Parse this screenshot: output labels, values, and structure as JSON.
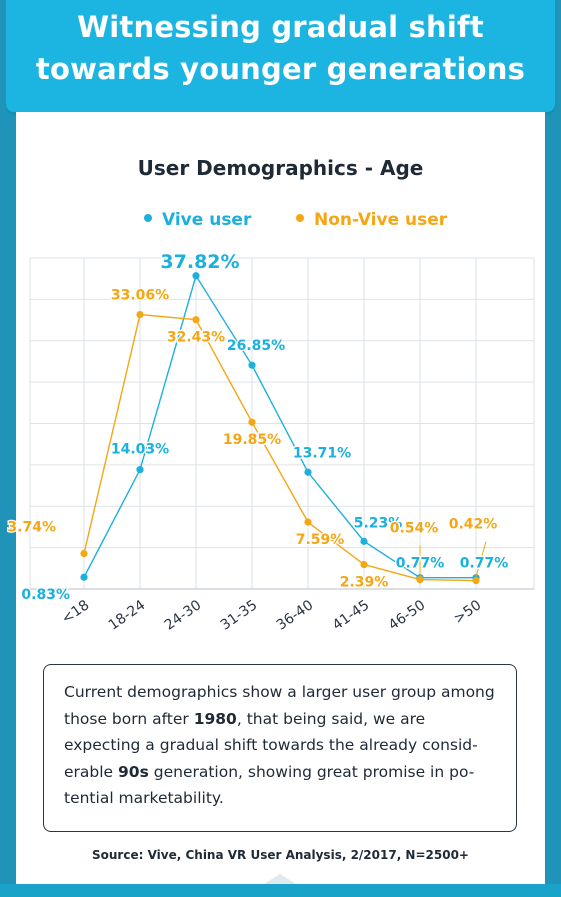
{
  "header": {
    "title": "Witnessing gradual shift towards younger generations"
  },
  "chart_data": {
    "type": "line",
    "title": "User Demographics - Age",
    "categories": [
      "<18",
      "18-24",
      "24-30",
      "31-35",
      "36-40",
      "41-45",
      "46-50",
      ">50"
    ],
    "series": [
      {
        "name": "Vive user",
        "color": "#1bb0dd",
        "values": [
          0.83,
          14.03,
          37.82,
          26.85,
          13.71,
          5.23,
          0.77,
          0.77
        ],
        "labels": [
          "0.83%",
          "14.03%",
          "37.82%",
          "26.85%",
          "13.71%",
          "5.23%",
          "0.77%",
          "0.77%"
        ]
      },
      {
        "name": "Non-Vive user",
        "color": "#f5a614",
        "values": [
          3.74,
          33.06,
          32.43,
          19.85,
          7.59,
          2.39,
          0.54,
          0.42
        ],
        "labels": [
          "3.74%",
          "33.06%",
          "32.43%",
          "19.85%",
          "7.59%",
          "2.39%",
          "0.54%",
          "0.42%"
        ]
      }
    ],
    "ylim": [
      0,
      40
    ],
    "grid": true,
    "legend": "top-center"
  },
  "description": {
    "parts": [
      {
        "text": "Current demographics show a larger user group among those born after ",
        "bold": false
      },
      {
        "text": "1980",
        "bold": true
      },
      {
        "text": ", that being said, we are expecting a gradual shift towards the already consid-erable ",
        "bold": false
      },
      {
        "text": "90s",
        "bold": true
      },
      {
        "text": " generation, showing great promise in po-tential marketability.",
        "bold": false
      }
    ]
  },
  "source": "Source: Vive, China VR User Analysis, 2/2017, N=2500+"
}
